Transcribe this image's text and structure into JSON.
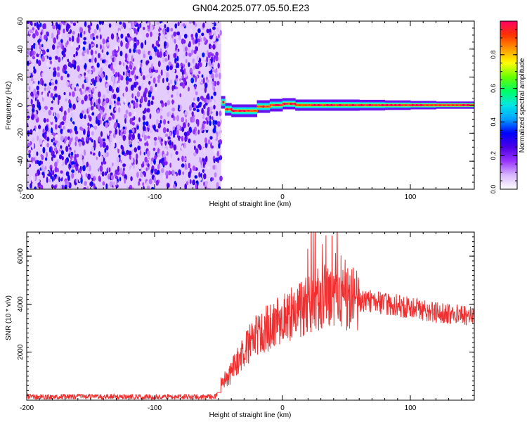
{
  "figure": {
    "title": "GN04.2025.077.05.50.E23"
  },
  "chart_data": [
    {
      "type": "heatmap",
      "xlabel": "Height of straight line (km)",
      "ylabel": "Frequency (Hz)",
      "xlim": [
        -200,
        150
      ],
      "ylim": [
        -60,
        60
      ],
      "xticks": [
        "-200",
        "-100",
        "0",
        "100"
      ],
      "yticks": [
        "-60",
        "-40",
        "-20",
        "0",
        "20",
        "40",
        "60"
      ],
      "colorbar": {
        "label": "Normalized spectral amplitude",
        "range": [
          0,
          1
        ],
        "ticks": [
          "0.0",
          "0.2",
          "0.4",
          "0.6",
          "0.8"
        ],
        "colormap": [
          "#ffffff",
          "#d9b8ff",
          "#9933ff",
          "#4b00e6",
          "#0000ff",
          "#00a0ff",
          "#00e5e5",
          "#00ff66",
          "#66ff00",
          "#ffff00",
          "#ff9900",
          "#ff3300",
          "#ff0066"
        ]
      },
      "noise_region": {
        "x_range": [
          -200,
          -48
        ],
        "peak_amplitude": 0.35
      },
      "signal_track": {
        "x": [
          -48,
          -45,
          -40,
          -35,
          -30,
          -25,
          -20,
          -15,
          -10,
          -5,
          0,
          5,
          10,
          15,
          20,
          30,
          40,
          50,
          60,
          80,
          100,
          120,
          150
        ],
        "frequency_hz": [
          2,
          -3,
          -4,
          -4,
          -4,
          -4,
          -1,
          -1,
          0,
          0,
          1,
          1,
          0,
          0,
          0,
          0,
          0,
          0,
          0,
          0,
          0,
          0,
          0
        ],
        "amplitude": [
          0.55,
          0.9,
          1.0,
          1.0,
          1.0,
          0.95,
          0.95,
          0.95,
          1.0,
          1.0,
          1.0,
          1.0,
          0.95,
          0.95,
          1.0,
          1.0,
          1.0,
          1.0,
          1.0,
          1.0,
          1.0,
          1.0,
          1.0
        ]
      }
    },
    {
      "type": "line",
      "xlabel": "Height of straight line (km)",
      "ylabel": "SNR (10 * v/v)",
      "xlim": [
        -200,
        150
      ],
      "ylim": [
        0,
        7000
      ],
      "xticks": [
        "-200",
        "-100",
        "0",
        "100"
      ],
      "yticks": [
        "2000",
        "4000",
        "6000"
      ],
      "color": "#f03030",
      "series": [
        {
          "x": [
            -200,
            -180,
            -160,
            -140,
            -120,
            -100,
            -80,
            -60,
            -52,
            -48,
            -46,
            -44,
            -42,
            -40,
            -36,
            -32,
            -28,
            -24,
            -20,
            -16,
            -12,
            -8,
            -4,
            0,
            4,
            8,
            12,
            16,
            20,
            24,
            28,
            32,
            36,
            40,
            44,
            48,
            52,
            56,
            60,
            65,
            70,
            75,
            80,
            85,
            90,
            95,
            100,
            110,
            120,
            130,
            140,
            150
          ],
          "values": [
            150,
            140,
            150,
            140,
            150,
            140,
            150,
            140,
            150,
            700,
            850,
            950,
            1000,
            1200,
            1600,
            1900,
            2200,
            2500,
            2700,
            2900,
            3000,
            3100,
            3300,
            3400,
            3500,
            3600,
            3700,
            3800,
            3950,
            4100,
            4200,
            4300,
            4350,
            4300,
            4300,
            4250,
            4200,
            4200,
            4150,
            4100,
            4100,
            4050,
            4000,
            4000,
            3950,
            3900,
            3850,
            3750,
            3650,
            3600,
            3550,
            3500
          ]
        }
      ]
    }
  ]
}
